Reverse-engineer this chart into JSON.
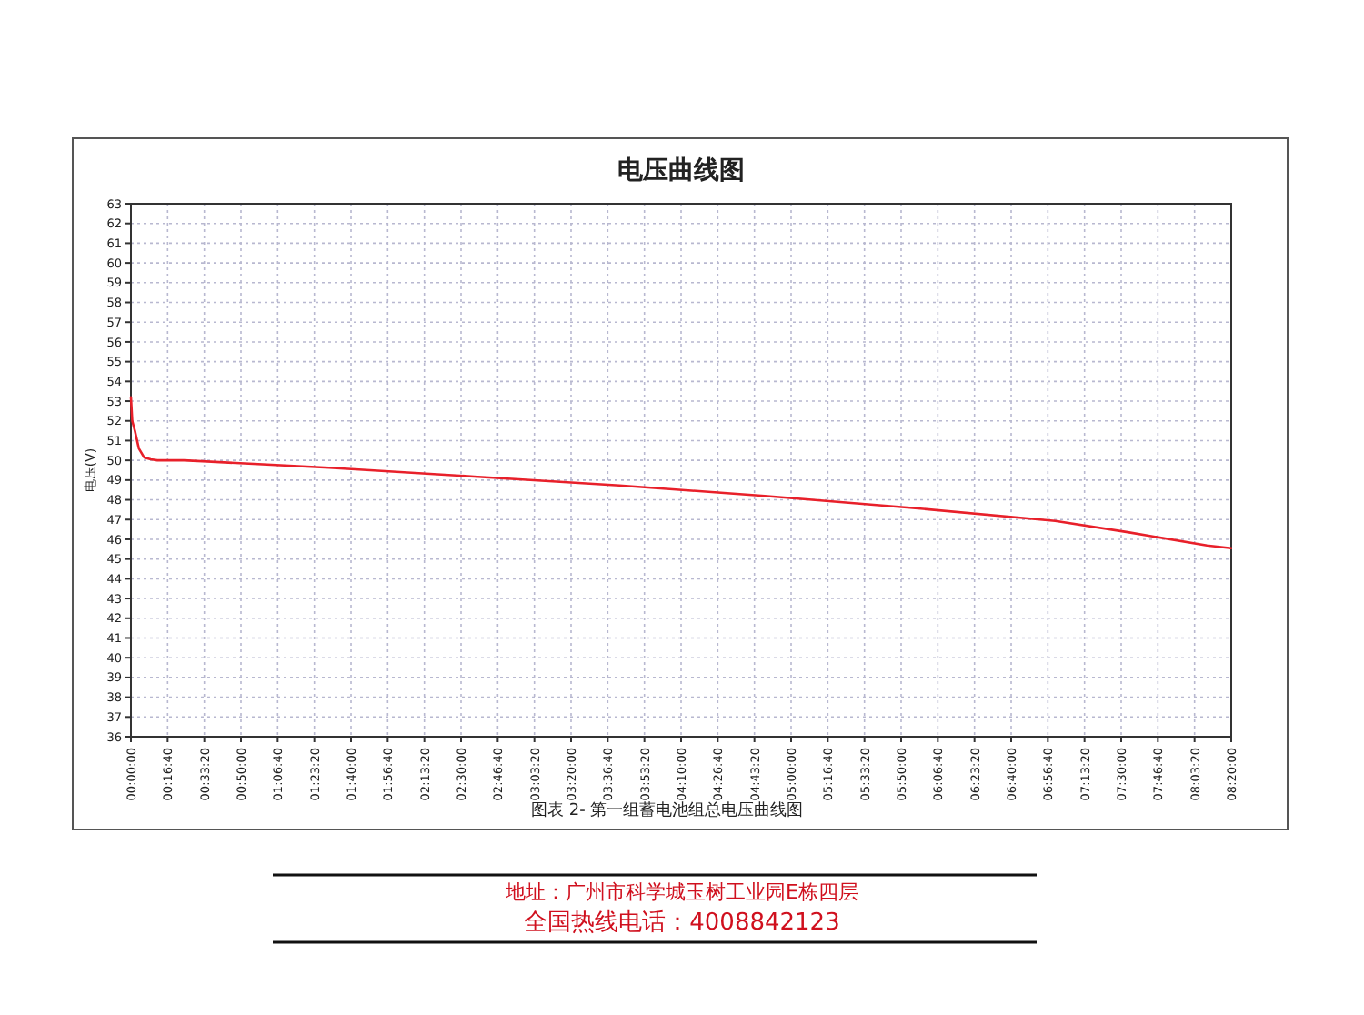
{
  "chart_data": {
    "type": "line",
    "title": "电压曲线图",
    "ylabel": "电压(V)",
    "x": [
      0,
      0.01,
      0.03,
      0.06,
      0.1,
      0.15,
      0.2,
      0.4,
      1.5,
      2.6,
      3.7,
      4.8,
      5.9,
      7.0,
      7.55,
      8.15,
      8.3333
    ],
    "series": [
      {
        "color": "#e8202a",
        "values": [
          53.2,
          52.0,
          51.5,
          50.6,
          50.15,
          50.05,
          50.0,
          50.0,
          49.63,
          49.18,
          48.73,
          48.2,
          47.6,
          46.93,
          46.36,
          45.69,
          45.55
        ]
      }
    ],
    "xlim": [
      0,
      8.3333
    ],
    "xticks": [
      {
        "value": 0,
        "label": "00:00:00"
      },
      {
        "value": 0.2778,
        "label": "00:16:40"
      },
      {
        "value": 0.5556,
        "label": "00:33:20"
      },
      {
        "value": 0.8333,
        "label": "00:50:00"
      },
      {
        "value": 1.1111,
        "label": "01:06:40"
      },
      {
        "value": 1.3889,
        "label": "01:23:20"
      },
      {
        "value": 1.6667,
        "label": "01:40:00"
      },
      {
        "value": 1.9444,
        "label": "01:56:40"
      },
      {
        "value": 2.2222,
        "label": "02:13:20"
      },
      {
        "value": 2.5,
        "label": "02:30:00"
      },
      {
        "value": 2.7778,
        "label": "02:46:40"
      },
      {
        "value": 3.0556,
        "label": "03:03:20"
      },
      {
        "value": 3.3333,
        "label": "03:20:00"
      },
      {
        "value": 3.6111,
        "label": "03:36:40"
      },
      {
        "value": 3.8889,
        "label": "03:53:20"
      },
      {
        "value": 4.1667,
        "label": "04:10:00"
      },
      {
        "value": 4.4444,
        "label": "04:26:40"
      },
      {
        "value": 4.7222,
        "label": "04:43:20"
      },
      {
        "value": 5,
        "label": "05:00:00"
      },
      {
        "value": 5.2778,
        "label": "05:16:40"
      },
      {
        "value": 5.5556,
        "label": "05:33:20"
      },
      {
        "value": 5.8333,
        "label": "05:50:00"
      },
      {
        "value": 6.1111,
        "label": "06:06:40"
      },
      {
        "value": 6.3889,
        "label": "06:23:20"
      },
      {
        "value": 6.6667,
        "label": "06:40:00"
      },
      {
        "value": 6.9444,
        "label": "06:56:40"
      },
      {
        "value": 7.2222,
        "label": "07:13:20"
      },
      {
        "value": 7.5,
        "label": "07:30:00"
      },
      {
        "value": 7.7778,
        "label": "07:46:40"
      },
      {
        "value": 8.0556,
        "label": "08:03:20"
      },
      {
        "value": 8.3333,
        "label": "08:20:00"
      }
    ],
    "ylim": [
      36,
      63
    ],
    "yticks": [
      36,
      37,
      38,
      39,
      40,
      41,
      42,
      43,
      44,
      45,
      46,
      47,
      48,
      49,
      50,
      51,
      52,
      53,
      54,
      55,
      56,
      57,
      58,
      59,
      60,
      61,
      62,
      63
    ],
    "grid": true,
    "line_style": "solid",
    "marker": "none",
    "annotations": [
      "图表 2- 第一组蓄电池组总电压曲线图",
      "地址：广州市科学城玉树工业园E栋四层",
      "全国热线电话：4008842123"
    ]
  }
}
